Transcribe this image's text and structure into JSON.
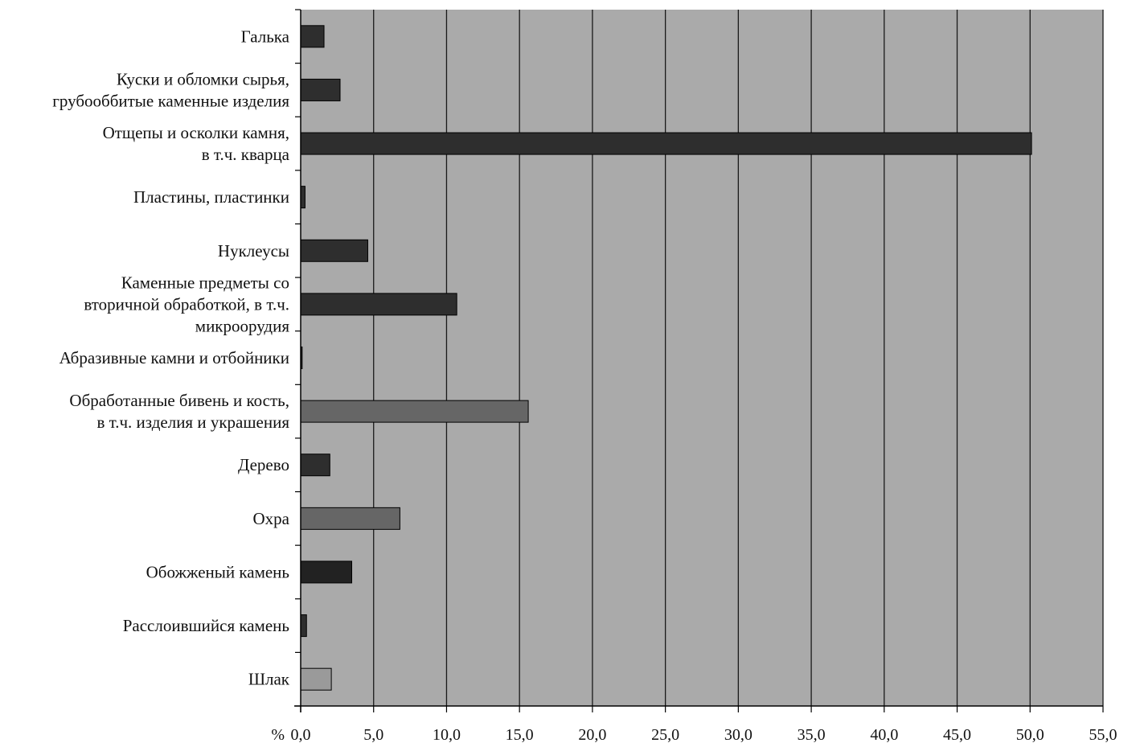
{
  "chart_data": {
    "type": "bar",
    "orientation": "horizontal",
    "categories": [
      "Галька",
      "Куски и обломки сырья,\nгрубооббитые каменные изделия",
      "Отщепы и осколки камня,\nв т.ч. кварца",
      "Пластины, пластинки",
      "Нуклеусы",
      "Каменные предметы со\nвторичной обработкой, в т.ч.\nмикроорудия",
      "Абразивные камни и отбойники",
      "Обработанные бивень и кость,\nв т.ч. изделия и украшения",
      "Дерево",
      "Охра",
      "Обожженый камень",
      "Расслоившийся камень",
      "Шлак"
    ],
    "values": [
      1.6,
      2.7,
      50.1,
      0.3,
      4.6,
      10.7,
      0.1,
      15.6,
      2.0,
      6.8,
      3.5,
      0.4,
      2.1
    ],
    "bar_colors": [
      "#2e2e2e",
      "#2e2e2e",
      "#2e2e2e",
      "#2e2e2e",
      "#2e2e2e",
      "#2e2e2e",
      "#2e2e2e",
      "#666666",
      "#2e2e2e",
      "#666666",
      "#222222",
      "#2e2e2e",
      "#9a9a9a"
    ],
    "xlim": [
      0,
      55
    ],
    "x_ticks": [
      0,
      5,
      10,
      15,
      20,
      25,
      30,
      35,
      40,
      45,
      50,
      55
    ],
    "x_tick_labels": [
      "0,0",
      "5,0",
      "10,0",
      "15,0",
      "20,0",
      "25,0",
      "30,0",
      "35,0",
      "40,0",
      "45,0",
      "50,0",
      "55,0"
    ],
    "x_unit": "%",
    "title": "",
    "xlabel": "",
    "ylabel": "",
    "grid": "vertical",
    "plot_background": "#aaaaaa",
    "grid_color": "#1a1a1a",
    "legend": "none"
  }
}
